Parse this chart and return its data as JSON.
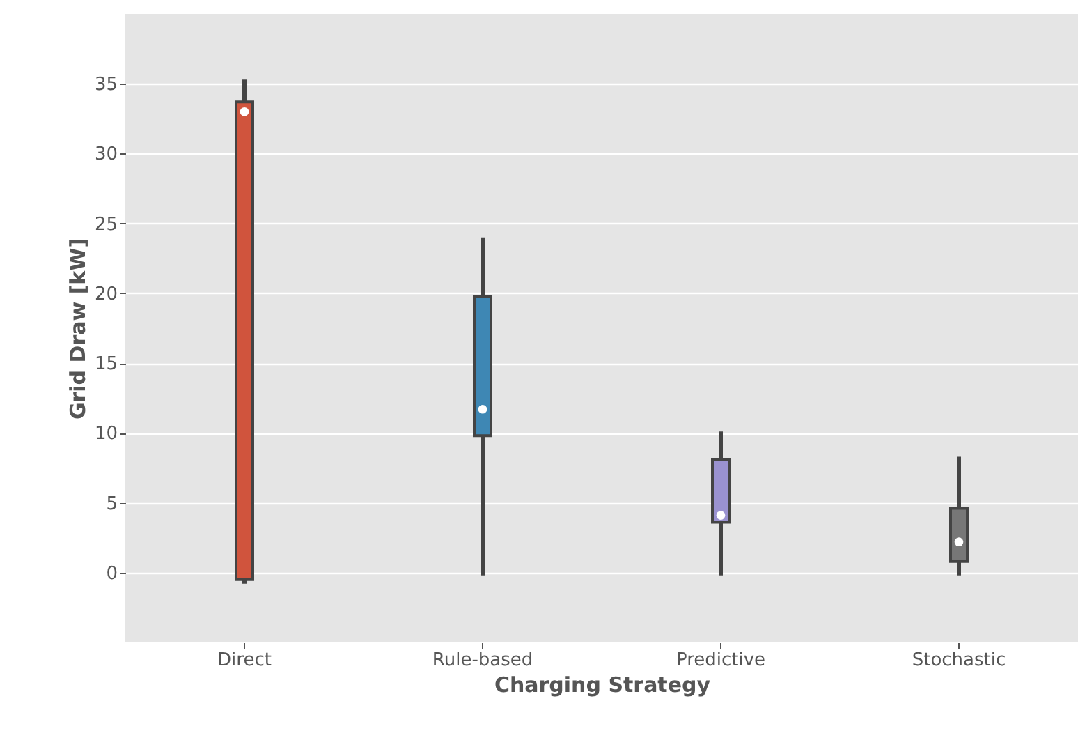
{
  "chart_data": {
    "type": "box",
    "xlabel": "Charging Strategy",
    "ylabel": "Grid Draw [kW]",
    "categories": [
      "Direct",
      "Rule-based",
      "Predictive",
      "Stochastic"
    ],
    "colors": [
      "#d0543d",
      "#3e87b4",
      "#9a92d0",
      "#777777"
    ],
    "boxes": [
      {
        "low": -0.8,
        "q1": -0.5,
        "median": 33,
        "q3": 33.7,
        "high": 35.3
      },
      {
        "low": -0.2,
        "q1": 9.8,
        "median": 11.7,
        "q3": 19.8,
        "high": 24
      },
      {
        "low": -0.2,
        "q1": 3.6,
        "median": 4.1,
        "q3": 8.1,
        "high": 10.1
      },
      {
        "low": -0.2,
        "q1": 0.8,
        "median": 2.2,
        "q3": 4.6,
        "high": 8.3
      }
    ],
    "ylim": [
      -5,
      40
    ],
    "yticks": [
      0,
      5,
      10,
      15,
      20,
      25,
      30,
      35
    ],
    "grid": true
  }
}
